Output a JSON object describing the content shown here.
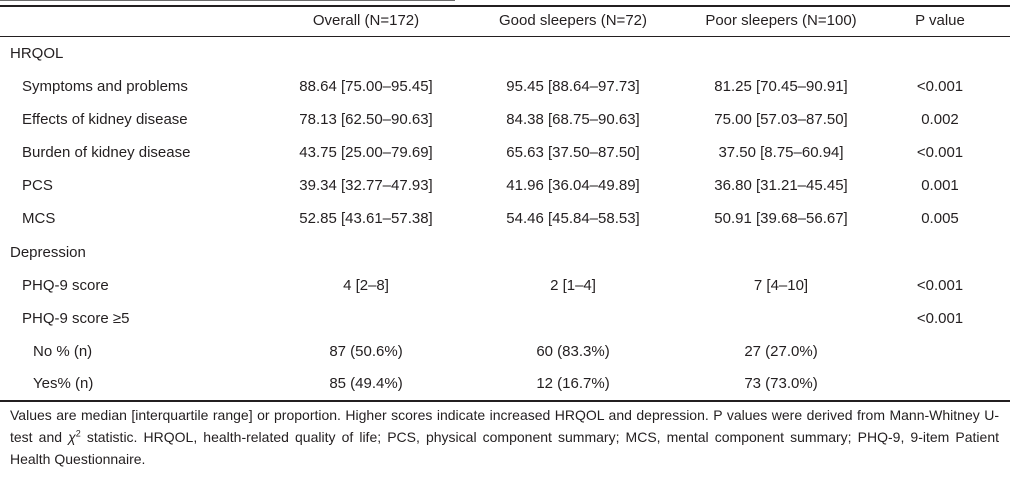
{
  "columns": {
    "overall": "Overall (N=172)",
    "good": "Good sleepers (N=72)",
    "poor": "Poor sleepers (N=100)",
    "p": "P value"
  },
  "sections": {
    "hrqol": "HRQOL",
    "depression": "Depression"
  },
  "rows": [
    {
      "label": "Symptoms and problems",
      "overall": "88.64 [75.00–95.45]",
      "good": "95.45 [88.64–97.73]",
      "poor": "81.25 [70.45–90.91]",
      "p": "<0.001"
    },
    {
      "label": "Effects of kidney disease",
      "overall": "78.13 [62.50–90.63]",
      "good": "84.38 [68.75–90.63]",
      "poor": "75.00 [57.03–87.50]",
      "p": "0.002"
    },
    {
      "label": "Burden of kidney disease",
      "overall": "43.75 [25.00–79.69]",
      "good": "65.63 [37.50–87.50]",
      "poor": "37.50 [8.75–60.94]",
      "p": "<0.001"
    },
    {
      "label": "PCS",
      "overall": "39.34 [32.77–47.93]",
      "good": "41.96 [36.04–49.89]",
      "poor": "36.80 [31.21–45.45]",
      "p": "0.001"
    },
    {
      "label": "MCS",
      "overall": "52.85 [43.61–57.38]",
      "good": "54.46 [45.84–58.53]",
      "poor": "50.91 [39.68–56.67]",
      "p": "0.005"
    },
    {
      "label": "PHQ-9 score",
      "overall": "4 [2–8]",
      "good": "2 [1–4]",
      "poor": "7 [4–10]",
      "p": "<0.001"
    },
    {
      "label": "PHQ-9 score ≥5",
      "overall": "",
      "good": "",
      "poor": "",
      "p": "<0.001"
    },
    {
      "label": "No % (n)",
      "overall": "87 (50.6%)",
      "good": "60 (83.3%)",
      "poor": "27 (27.0%)",
      "p": ""
    },
    {
      "label": "Yes% (n)",
      "overall": "85 (49.4%)",
      "good": "12 (16.7%)",
      "poor": "73 (73.0%)",
      "p": ""
    }
  ],
  "footnote": {
    "part1": "Values are median [interquartile range] or proportion. Higher scores indicate increased HRQOL and depression. P values were derived from Mann-Whitney U-test and ",
    "chi": "χ",
    "sup": "2",
    "part2": " statistic. HRQOL, health-related quality of life; PCS, physical component summary; MCS, mental component summary; PHQ-9, 9-item Patient Health Questionnaire."
  }
}
